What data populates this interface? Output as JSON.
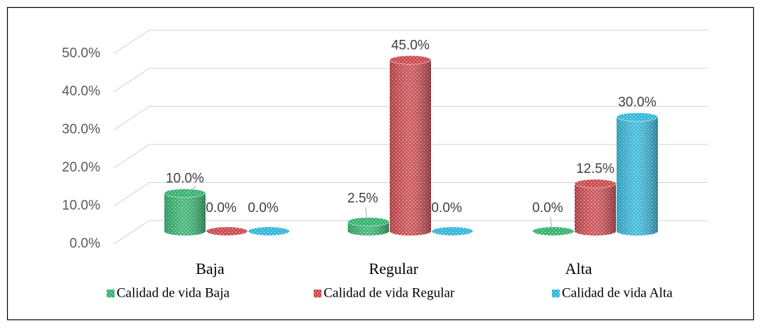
{
  "chart_data": {
    "type": "bar3d",
    "categories": [
      "Baja",
      "Regular",
      "Alta"
    ],
    "series": [
      {
        "name": "Calidad de vida Baja",
        "color": "#2fb06a",
        "values": [
          10,
          2.5,
          0
        ],
        "value_labels": [
          "10.0%",
          "2.5%",
          "0.0%"
        ]
      },
      {
        "name": "Calidad de vida Regular",
        "color": "#c9454a",
        "values": [
          0,
          45,
          12.5
        ],
        "value_labels": [
          "0.0%",
          "45.0%",
          "12.5%"
        ]
      },
      {
        "name": "Calidad de vida Alta",
        "color": "#2fb4d8",
        "values": [
          0,
          0,
          30
        ],
        "value_labels": [
          "0.0%",
          "0.0%",
          "30.0%"
        ]
      }
    ],
    "ylim": [
      0,
      50
    ],
    "yticks": [
      {
        "value": 0,
        "label": "0.0%"
      },
      {
        "value": 10,
        "label": "10.0%"
      },
      {
        "value": 20,
        "label": "20.0%"
      },
      {
        "value": 30,
        "label": "30.0%"
      },
      {
        "value": 40,
        "label": "40.0%"
      },
      {
        "value": 50,
        "label": "50.0%"
      }
    ],
    "grid": true,
    "legend": "bottom"
  }
}
